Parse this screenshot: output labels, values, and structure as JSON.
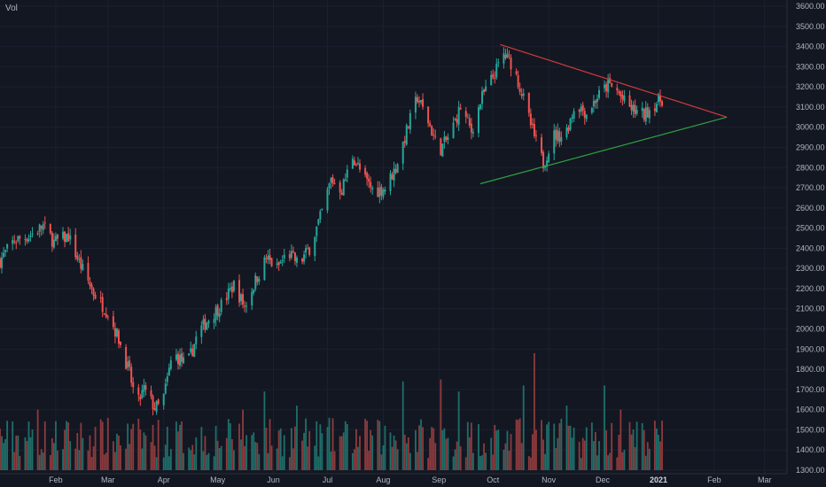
{
  "header": {
    "vol_label": "Vol"
  },
  "colors": {
    "background": "#131722",
    "up": "#26a69a",
    "down": "#ef5350",
    "vol_up": "#1f6f6a",
    "vol_down": "#8e3b3d",
    "resistance": "#d13b3b",
    "support": "#2ea043",
    "text": "#b2b5be"
  },
  "chart_data": {
    "type": "candlestick",
    "y_axis": {
      "min": 1300,
      "max": 3600,
      "step": 100,
      "position": "right",
      "ticks": [
        "3600.00",
        "3500.00",
        "3400.00",
        "3300.00",
        "3200.00",
        "3100.00",
        "3000.00",
        "2900.00",
        "2800.00",
        "2700.00",
        "2600.00",
        "2500.00",
        "2400.00",
        "2300.00",
        "2200.00",
        "2100.00",
        "2000.00",
        "1900.00",
        "1800.00",
        "1700.00",
        "1600.00",
        "1500.00",
        "1400.00",
        "1300.00"
      ]
    },
    "x_axis": {
      "days_in_view": 420,
      "ticks": [
        {
          "label": "Feb",
          "day": 31
        },
        {
          "label": "Mar",
          "day": 60
        },
        {
          "label": "Apr",
          "day": 91
        },
        {
          "label": "May",
          "day": 121
        },
        {
          "label": "Jun",
          "day": 152
        },
        {
          "label": "Jul",
          "day": 182
        },
        {
          "label": "Aug",
          "day": 213
        },
        {
          "label": "Sep",
          "day": 244
        },
        {
          "label": "Oct",
          "day": 274
        },
        {
          "label": "Nov",
          "day": 305
        },
        {
          "label": "Dec",
          "day": 335
        },
        {
          "label": "2021",
          "day": 366,
          "bold": true
        },
        {
          "label": "Feb",
          "day": 397
        },
        {
          "label": "Mar",
          "day": 425
        }
      ]
    },
    "price_path": [
      {
        "day": 0,
        "close": 2340
      },
      {
        "day": 8,
        "close": 2440
      },
      {
        "day": 16,
        "close": 2460
      },
      {
        "day": 24,
        "close": 2510
      },
      {
        "day": 30,
        "close": 2430
      },
      {
        "day": 38,
        "close": 2460
      },
      {
        "day": 44,
        "close": 2330
      },
      {
        "day": 52,
        "close": 2180
      },
      {
        "day": 60,
        "close": 2080
      },
      {
        "day": 66,
        "close": 1950
      },
      {
        "day": 72,
        "close": 1780
      },
      {
        "day": 76,
        "close": 1620
      },
      {
        "day": 80,
        "close": 1700
      },
      {
        "day": 86,
        "close": 1610
      },
      {
        "day": 90,
        "close": 1620
      },
      {
        "day": 96,
        "close": 1880
      },
      {
        "day": 104,
        "close": 1820
      },
      {
        "day": 110,
        "close": 1980
      },
      {
        "day": 116,
        "close": 2050
      },
      {
        "day": 124,
        "close": 2130
      },
      {
        "day": 130,
        "close": 2220
      },
      {
        "day": 136,
        "close": 2110
      },
      {
        "day": 142,
        "close": 2240
      },
      {
        "day": 148,
        "close": 2350
      },
      {
        "day": 154,
        "close": 2300
      },
      {
        "day": 160,
        "close": 2380
      },
      {
        "day": 166,
        "close": 2320
      },
      {
        "day": 172,
        "close": 2400
      },
      {
        "day": 178,
        "close": 2550
      },
      {
        "day": 184,
        "close": 2740
      },
      {
        "day": 190,
        "close": 2690
      },
      {
        "day": 196,
        "close": 2860
      },
      {
        "day": 202,
        "close": 2750
      },
      {
        "day": 208,
        "close": 2680
      },
      {
        "day": 214,
        "close": 2700
      },
      {
        "day": 220,
        "close": 2800
      },
      {
        "day": 226,
        "close": 2980
      },
      {
        "day": 232,
        "close": 3150
      },
      {
        "day": 238,
        "close": 3030
      },
      {
        "day": 244,
        "close": 2880
      },
      {
        "day": 250,
        "close": 2960
      },
      {
        "day": 256,
        "close": 3100
      },
      {
        "day": 262,
        "close": 2980
      },
      {
        "day": 268,
        "close": 3150
      },
      {
        "day": 274,
        "close": 3250
      },
      {
        "day": 280,
        "close": 3360
      },
      {
        "day": 285,
        "close": 3310
      },
      {
        "day": 290,
        "close": 3170
      },
      {
        "day": 296,
        "close": 2980
      },
      {
        "day": 302,
        "close": 2820
      },
      {
        "day": 308,
        "close": 2960
      },
      {
        "day": 314,
        "close": 2960
      },
      {
        "day": 320,
        "close": 3120
      },
      {
        "day": 326,
        "close": 3070
      },
      {
        "day": 332,
        "close": 3150
      },
      {
        "day": 338,
        "close": 3210
      },
      {
        "day": 343,
        "close": 3180
      },
      {
        "day": 348,
        "close": 3110
      },
      {
        "day": 353,
        "close": 3080
      },
      {
        "day": 358,
        "close": 3060
      },
      {
        "day": 362,
        "close": 3100
      },
      {
        "day": 366,
        "close": 3130
      },
      {
        "day": 370,
        "close": 3150
      }
    ],
    "volume": {
      "baseline": 1300,
      "typical_range": [
        1360,
        1560
      ],
      "spikes": [
        {
          "day": 22,
          "top": 1600
        },
        {
          "day": 136,
          "top": 1600
        },
        {
          "day": 146,
          "top": 1690
        },
        {
          "day": 166,
          "top": 1620
        },
        {
          "day": 224,
          "top": 1740
        },
        {
          "day": 244,
          "top": 1750
        },
        {
          "day": 256,
          "top": 1690
        },
        {
          "day": 292,
          "top": 1720
        },
        {
          "day": 298,
          "top": 1880
        },
        {
          "day": 314,
          "top": 1620
        },
        {
          "day": 336,
          "top": 1720
        },
        {
          "day": 346,
          "top": 1600
        }
      ]
    },
    "trend_lines": [
      {
        "name": "resistance",
        "from": {
          "day": 278,
          "price": 3410
        },
        "to": {
          "day": 404,
          "price": 3050
        }
      },
      {
        "name": "support",
        "from": {
          "day": 267,
          "price": 2720
        },
        "to": {
          "day": 404,
          "price": 3050
        }
      }
    ]
  }
}
